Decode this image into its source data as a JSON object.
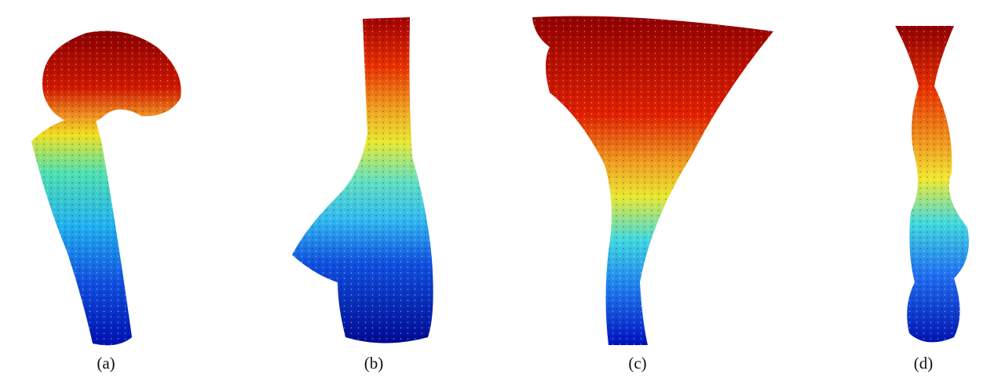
{
  "figure": {
    "subfigures": [
      {
        "label": "(a)"
      },
      {
        "label": "(b)"
      },
      {
        "label": "(c)"
      },
      {
        "label": "(d)"
      }
    ]
  }
}
